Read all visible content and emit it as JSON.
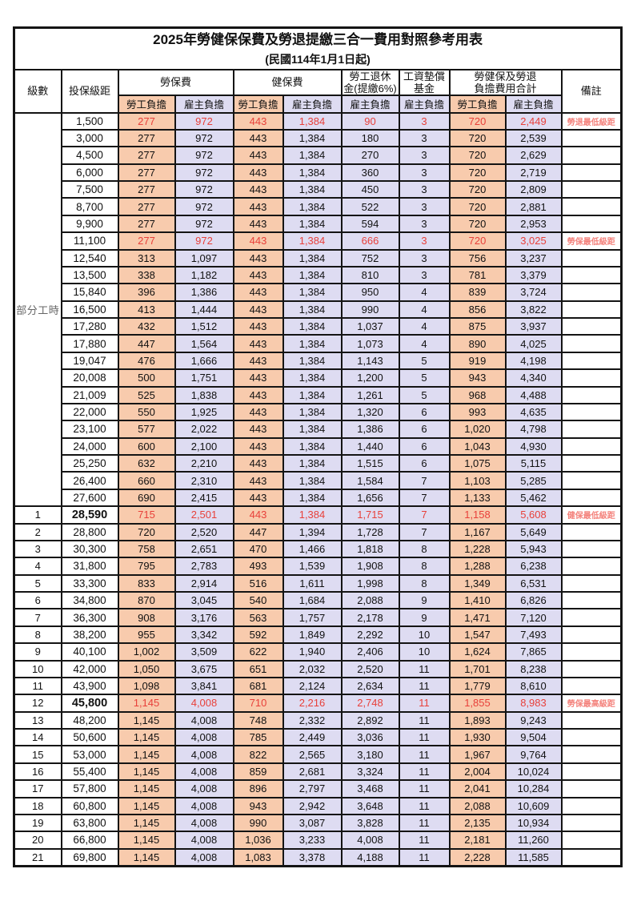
{
  "title": {
    "line1": "2025年勞健保保費及勞退提繳三合一費用對照參考用表",
    "line2": "(民國114年1月1日起)"
  },
  "header": {
    "level": "級數",
    "bracket": "投保級距",
    "labor_insurance": "勞保費",
    "health_insurance": "健保費",
    "pension_line1": "勞工退休",
    "pension_line2": "金(提繳6%)",
    "wage_fund_line1": "工資墊償",
    "wage_fund_line2": "基金",
    "total_line1": "勞健保及勞退",
    "total_line2": "負擔費用合計",
    "remarks": "備註",
    "employee": "勞工負擔",
    "employer": "雇主負擔"
  },
  "part_time_label": "部分工時",
  "colors": {
    "employee_column_bg": "#F8CBAD",
    "employer_column_bg": "#DEDCF2",
    "highlight_value_red": "#E8403A",
    "remark_red": "#F4827C",
    "grid_border": "#141414"
  },
  "rows": [
    {
      "level": "",
      "bracket": "1,500",
      "values": [
        "277",
        "972",
        "443",
        "1,384",
        "90",
        "3",
        "720",
        "2,449"
      ],
      "remark": "勞退最低級距",
      "highlight": true,
      "bold_bracket": false
    },
    {
      "level": "",
      "bracket": "3,000",
      "values": [
        "277",
        "972",
        "443",
        "1,384",
        "180",
        "3",
        "720",
        "2,539"
      ],
      "remark": "",
      "highlight": false,
      "bold_bracket": false
    },
    {
      "level": "",
      "bracket": "4,500",
      "values": [
        "277",
        "972",
        "443",
        "1,384",
        "270",
        "3",
        "720",
        "2,629"
      ],
      "remark": "",
      "highlight": false,
      "bold_bracket": false
    },
    {
      "level": "",
      "bracket": "6,000",
      "values": [
        "277",
        "972",
        "443",
        "1,384",
        "360",
        "3",
        "720",
        "2,719"
      ],
      "remark": "",
      "highlight": false,
      "bold_bracket": false
    },
    {
      "level": "",
      "bracket": "7,500",
      "values": [
        "277",
        "972",
        "443",
        "1,384",
        "450",
        "3",
        "720",
        "2,809"
      ],
      "remark": "",
      "highlight": false,
      "bold_bracket": false
    },
    {
      "level": "",
      "bracket": "8,700",
      "values": [
        "277",
        "972",
        "443",
        "1,384",
        "522",
        "3",
        "720",
        "2,881"
      ],
      "remark": "",
      "highlight": false,
      "bold_bracket": false
    },
    {
      "level": "",
      "bracket": "9,900",
      "values": [
        "277",
        "972",
        "443",
        "1,384",
        "594",
        "3",
        "720",
        "2,953"
      ],
      "remark": "",
      "highlight": false,
      "bold_bracket": false
    },
    {
      "level": "",
      "bracket": "11,100",
      "values": [
        "277",
        "972",
        "443",
        "1,384",
        "666",
        "3",
        "720",
        "3,025"
      ],
      "remark": "勞保最低級距",
      "highlight": true,
      "bold_bracket": false
    },
    {
      "level": "",
      "bracket": "12,540",
      "values": [
        "313",
        "1,097",
        "443",
        "1,384",
        "752",
        "3",
        "756",
        "3,237"
      ],
      "remark": "",
      "highlight": false,
      "bold_bracket": false
    },
    {
      "level": "",
      "bracket": "13,500",
      "values": [
        "338",
        "1,182",
        "443",
        "1,384",
        "810",
        "3",
        "781",
        "3,379"
      ],
      "remark": "",
      "highlight": false,
      "bold_bracket": false
    },
    {
      "level": "",
      "bracket": "15,840",
      "values": [
        "396",
        "1,386",
        "443",
        "1,384",
        "950",
        "4",
        "839",
        "3,724"
      ],
      "remark": "",
      "highlight": false,
      "bold_bracket": false
    },
    {
      "level": "",
      "bracket": "16,500",
      "values": [
        "413",
        "1,444",
        "443",
        "1,384",
        "990",
        "4",
        "856",
        "3,822"
      ],
      "remark": "",
      "highlight": false,
      "bold_bracket": false
    },
    {
      "level": "",
      "bracket": "17,280",
      "values": [
        "432",
        "1,512",
        "443",
        "1,384",
        "1,037",
        "4",
        "875",
        "3,937"
      ],
      "remark": "",
      "highlight": false,
      "bold_bracket": false
    },
    {
      "level": "",
      "bracket": "17,880",
      "values": [
        "447",
        "1,564",
        "443",
        "1,384",
        "1,073",
        "4",
        "890",
        "4,025"
      ],
      "remark": "",
      "highlight": false,
      "bold_bracket": false
    },
    {
      "level": "",
      "bracket": "19,047",
      "values": [
        "476",
        "1,666",
        "443",
        "1,384",
        "1,143",
        "5",
        "919",
        "4,198"
      ],
      "remark": "",
      "highlight": false,
      "bold_bracket": false
    },
    {
      "level": "",
      "bracket": "20,008",
      "values": [
        "500",
        "1,751",
        "443",
        "1,384",
        "1,200",
        "5",
        "943",
        "4,340"
      ],
      "remark": "",
      "highlight": false,
      "bold_bracket": false
    },
    {
      "level": "",
      "bracket": "21,009",
      "values": [
        "525",
        "1,838",
        "443",
        "1,384",
        "1,261",
        "5",
        "968",
        "4,488"
      ],
      "remark": "",
      "highlight": false,
      "bold_bracket": false
    },
    {
      "level": "",
      "bracket": "22,000",
      "values": [
        "550",
        "1,925",
        "443",
        "1,384",
        "1,320",
        "6",
        "993",
        "4,635"
      ],
      "remark": "",
      "highlight": false,
      "bold_bracket": false
    },
    {
      "level": "",
      "bracket": "23,100",
      "values": [
        "577",
        "2,022",
        "443",
        "1,384",
        "1,386",
        "6",
        "1,020",
        "4,798"
      ],
      "remark": "",
      "highlight": false,
      "bold_bracket": false
    },
    {
      "level": "",
      "bracket": "24,000",
      "values": [
        "600",
        "2,100",
        "443",
        "1,384",
        "1,440",
        "6",
        "1,043",
        "4,930"
      ],
      "remark": "",
      "highlight": false,
      "bold_bracket": false
    },
    {
      "level": "",
      "bracket": "25,250",
      "values": [
        "632",
        "2,210",
        "443",
        "1,384",
        "1,515",
        "6",
        "1,075",
        "5,115"
      ],
      "remark": "",
      "highlight": false,
      "bold_bracket": false
    },
    {
      "level": "",
      "bracket": "26,400",
      "values": [
        "660",
        "2,310",
        "443",
        "1,384",
        "1,584",
        "7",
        "1,103",
        "5,285"
      ],
      "remark": "",
      "highlight": false,
      "bold_bracket": false
    },
    {
      "level": "",
      "bracket": "27,600",
      "values": [
        "690",
        "2,415",
        "443",
        "1,384",
        "1,656",
        "7",
        "1,133",
        "5,462"
      ],
      "remark": "",
      "highlight": false,
      "bold_bracket": false
    },
    {
      "level": "1",
      "bracket": "28,590",
      "values": [
        "715",
        "2,501",
        "443",
        "1,384",
        "1,715",
        "7",
        "1,158",
        "5,608"
      ],
      "remark": "健保最低級距",
      "highlight": true,
      "bold_bracket": true
    },
    {
      "level": "2",
      "bracket": "28,800",
      "values": [
        "720",
        "2,520",
        "447",
        "1,394",
        "1,728",
        "7",
        "1,167",
        "5,649"
      ],
      "remark": "",
      "highlight": false,
      "bold_bracket": false
    },
    {
      "level": "3",
      "bracket": "30,300",
      "values": [
        "758",
        "2,651",
        "470",
        "1,466",
        "1,818",
        "8",
        "1,228",
        "5,943"
      ],
      "remark": "",
      "highlight": false,
      "bold_bracket": false
    },
    {
      "level": "4",
      "bracket": "31,800",
      "values": [
        "795",
        "2,783",
        "493",
        "1,539",
        "1,908",
        "8",
        "1,288",
        "6,238"
      ],
      "remark": "",
      "highlight": false,
      "bold_bracket": false
    },
    {
      "level": "5",
      "bracket": "33,300",
      "values": [
        "833",
        "2,914",
        "516",
        "1,611",
        "1,998",
        "8",
        "1,349",
        "6,531"
      ],
      "remark": "",
      "highlight": false,
      "bold_bracket": false
    },
    {
      "level": "6",
      "bracket": "34,800",
      "values": [
        "870",
        "3,045",
        "540",
        "1,684",
        "2,088",
        "9",
        "1,410",
        "6,826"
      ],
      "remark": "",
      "highlight": false,
      "bold_bracket": false
    },
    {
      "level": "7",
      "bracket": "36,300",
      "values": [
        "908",
        "3,176",
        "563",
        "1,757",
        "2,178",
        "9",
        "1,471",
        "7,120"
      ],
      "remark": "",
      "highlight": false,
      "bold_bracket": false
    },
    {
      "level": "8",
      "bracket": "38,200",
      "values": [
        "955",
        "3,342",
        "592",
        "1,849",
        "2,292",
        "10",
        "1,547",
        "7,493"
      ],
      "remark": "",
      "highlight": false,
      "bold_bracket": false
    },
    {
      "level": "9",
      "bracket": "40,100",
      "values": [
        "1,002",
        "3,509",
        "622",
        "1,940",
        "2,406",
        "10",
        "1,624",
        "7,865"
      ],
      "remark": "",
      "highlight": false,
      "bold_bracket": false
    },
    {
      "level": "10",
      "bracket": "42,000",
      "values": [
        "1,050",
        "3,675",
        "651",
        "2,032",
        "2,520",
        "11",
        "1,701",
        "8,238"
      ],
      "remark": "",
      "highlight": false,
      "bold_bracket": false
    },
    {
      "level": "11",
      "bracket": "43,900",
      "values": [
        "1,098",
        "3,841",
        "681",
        "2,124",
        "2,634",
        "11",
        "1,779",
        "8,610"
      ],
      "remark": "",
      "highlight": false,
      "bold_bracket": false
    },
    {
      "level": "12",
      "bracket": "45,800",
      "values": [
        "1,145",
        "4,008",
        "710",
        "2,216",
        "2,748",
        "11",
        "1,855",
        "8,983"
      ],
      "remark": "勞保最高級距",
      "highlight": true,
      "bold_bracket": true
    },
    {
      "level": "13",
      "bracket": "48,200",
      "values": [
        "1,145",
        "4,008",
        "748",
        "2,332",
        "2,892",
        "11",
        "1,893",
        "9,243"
      ],
      "remark": "",
      "highlight": false,
      "bold_bracket": false
    },
    {
      "level": "14",
      "bracket": "50,600",
      "values": [
        "1,145",
        "4,008",
        "785",
        "2,449",
        "3,036",
        "11",
        "1,930",
        "9,504"
      ],
      "remark": "",
      "highlight": false,
      "bold_bracket": false
    },
    {
      "level": "15",
      "bracket": "53,000",
      "values": [
        "1,145",
        "4,008",
        "822",
        "2,565",
        "3,180",
        "11",
        "1,967",
        "9,764"
      ],
      "remark": "",
      "highlight": false,
      "bold_bracket": false
    },
    {
      "level": "16",
      "bracket": "55,400",
      "values": [
        "1,145",
        "4,008",
        "859",
        "2,681",
        "3,324",
        "11",
        "2,004",
        "10,024"
      ],
      "remark": "",
      "highlight": false,
      "bold_bracket": false
    },
    {
      "level": "17",
      "bracket": "57,800",
      "values": [
        "1,145",
        "4,008",
        "896",
        "2,797",
        "3,468",
        "11",
        "2,041",
        "10,284"
      ],
      "remark": "",
      "highlight": false,
      "bold_bracket": false
    },
    {
      "level": "18",
      "bracket": "60,800",
      "values": [
        "1,145",
        "4,008",
        "943",
        "2,942",
        "3,648",
        "11",
        "2,088",
        "10,609"
      ],
      "remark": "",
      "highlight": false,
      "bold_bracket": false
    },
    {
      "level": "19",
      "bracket": "63,800",
      "values": [
        "1,145",
        "4,008",
        "990",
        "3,087",
        "3,828",
        "11",
        "2,135",
        "10,934"
      ],
      "remark": "",
      "highlight": false,
      "bold_bracket": false
    },
    {
      "level": "20",
      "bracket": "66,800",
      "values": [
        "1,145",
        "4,008",
        "1,036",
        "3,233",
        "4,008",
        "11",
        "2,181",
        "11,260"
      ],
      "remark": "",
      "highlight": false,
      "bold_bracket": false
    },
    {
      "level": "21",
      "bracket": "69,800",
      "values": [
        "1,145",
        "4,008",
        "1,083",
        "3,378",
        "4,188",
        "11",
        "2,228",
        "11,585"
      ],
      "remark": "",
      "highlight": false,
      "bold_bracket": false
    }
  ]
}
